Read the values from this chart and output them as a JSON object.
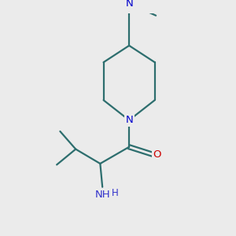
{
  "background_color": "#ebebeb",
  "bond_color": "#2d6e6e",
  "N_color": "#0000cc",
  "O_color": "#cc0000",
  "NH2_color": "#3333cc",
  "line_width": 1.6,
  "figsize": [
    3.0,
    3.0
  ],
  "dpi": 100,
  "xlim": [
    0,
    10
  ],
  "ylim": [
    0,
    10
  ],
  "font_size": 9.5
}
